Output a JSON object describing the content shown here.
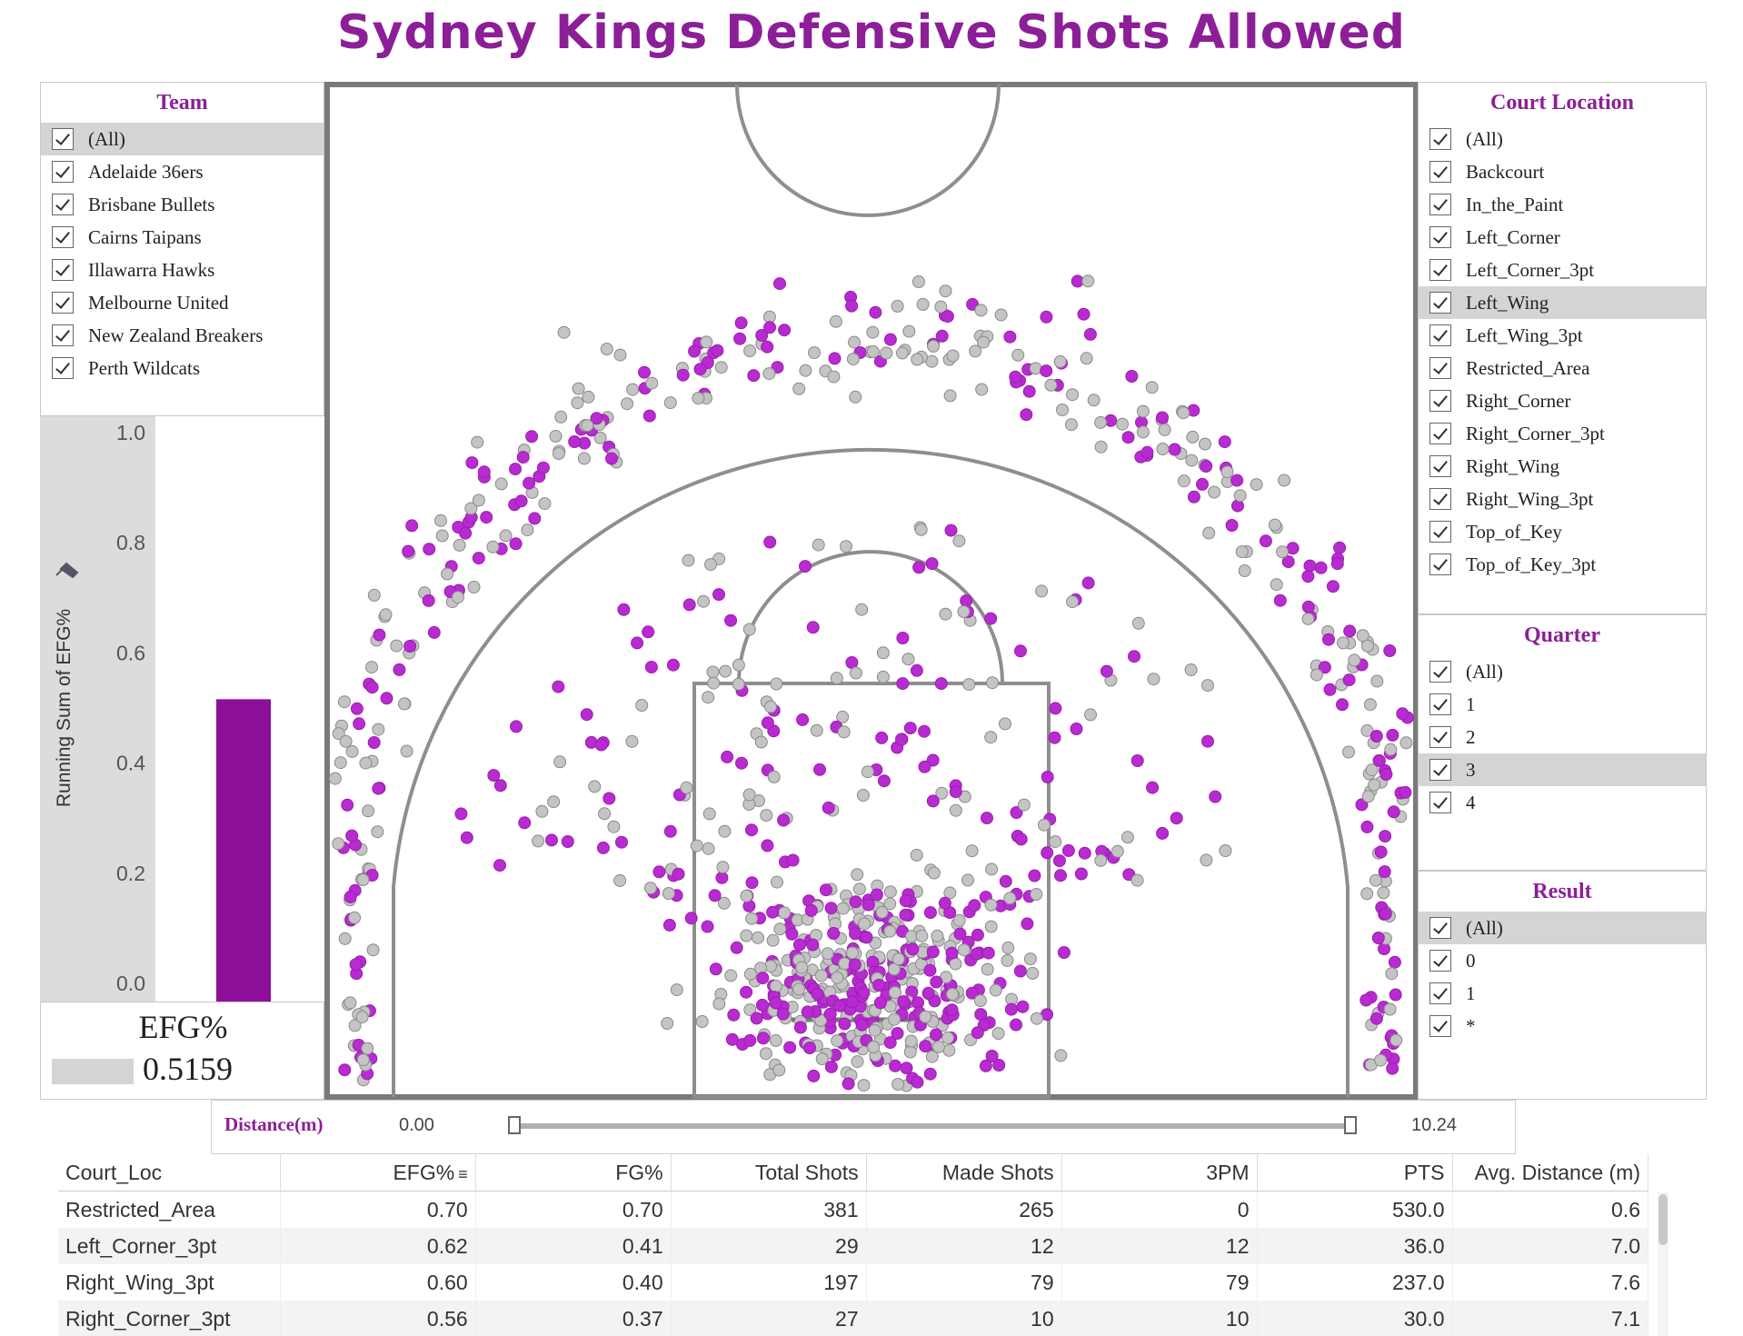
{
  "title": "Sydney Kings Defensive Shots Allowed",
  "colors": {
    "accent": "#8c1f97",
    "made": "#b82bd0",
    "missed": "#c4c4c4",
    "bar": "#8c0f9a"
  },
  "team_filter": {
    "title": "Team",
    "items": [
      {
        "label": "(All)",
        "checked": true
      },
      {
        "label": "Adelaide 36ers",
        "checked": true
      },
      {
        "label": "Brisbane Bullets",
        "checked": true
      },
      {
        "label": "Cairns Taipans",
        "checked": true
      },
      {
        "label": "Illawarra Hawks",
        "checked": true
      },
      {
        "label": "Melbourne United",
        "checked": true
      },
      {
        "label": "New Zealand Breakers",
        "checked": true
      },
      {
        "label": "Perth Wildcats",
        "checked": true
      }
    ]
  },
  "court_location_filter": {
    "title": "Court Location",
    "items": [
      {
        "label": "(All)",
        "checked": true
      },
      {
        "label": "Backcourt",
        "checked": true
      },
      {
        "label": "In_the_Paint",
        "checked": true
      },
      {
        "label": "Left_Corner",
        "checked": true
      },
      {
        "label": "Left_Corner_3pt",
        "checked": true
      },
      {
        "label": "Left_Wing",
        "checked": true
      },
      {
        "label": "Left_Wing_3pt",
        "checked": true
      },
      {
        "label": "Restricted_Area",
        "checked": true
      },
      {
        "label": "Right_Corner",
        "checked": true
      },
      {
        "label": "Right_Corner_3pt",
        "checked": true
      },
      {
        "label": "Right_Wing",
        "checked": true
      },
      {
        "label": "Right_Wing_3pt",
        "checked": true
      },
      {
        "label": "Top_of_Key",
        "checked": true
      },
      {
        "label": "Top_of_Key_3pt",
        "checked": true
      }
    ]
  },
  "quarter_filter": {
    "title": "Quarter",
    "items": [
      {
        "label": "(All)",
        "checked": true
      },
      {
        "label": "1",
        "checked": true
      },
      {
        "label": "2",
        "checked": true
      },
      {
        "label": "3",
        "checked": true
      },
      {
        "label": "4",
        "checked": true
      }
    ]
  },
  "result_filter": {
    "title": "Result",
    "items": [
      {
        "label": "(All)",
        "checked": true
      },
      {
        "label": "0",
        "checked": true
      },
      {
        "label": "1",
        "checked": true
      },
      {
        "label": "*",
        "checked": true
      }
    ]
  },
  "chart_data": {
    "type": "bar",
    "ylabel": "Running Sum of EFG%",
    "ylim": [
      0,
      1.0
    ],
    "ticks": [
      1.0,
      0.8,
      0.6,
      0.4,
      0.2,
      0.0
    ],
    "tick_labels": [
      "1.0",
      "0.8",
      "0.6",
      "0.4",
      "0.2",
      "0.0"
    ],
    "values": [
      0.5159
    ],
    "grid": false
  },
  "efg_summary": {
    "label": "EFG%",
    "value": "0.5159"
  },
  "distance_slider": {
    "label": "Distance(m)",
    "min_label": "0.00",
    "max_label": "10.24",
    "range": [
      0.0,
      10.24
    ]
  },
  "table": {
    "headers": [
      "Court_Loc",
      "EFG%",
      "FG%",
      "Total Shots",
      "Made Shots",
      "3PM",
      "PTS",
      "Avg. Distance (m)"
    ],
    "rows": [
      [
        "Restricted_Area",
        "0.70",
        "0.70",
        "381",
        "265",
        "0",
        "530.0",
        "0.6"
      ],
      [
        "Left_Corner_3pt",
        "0.62",
        "0.41",
        "29",
        "12",
        "12",
        "36.0",
        "7.0"
      ],
      [
        "Right_Wing_3pt",
        "0.60",
        "0.40",
        "197",
        "79",
        "79",
        "237.0",
        "7.6"
      ],
      [
        "Right_Corner_3pt",
        "0.56",
        "0.37",
        "27",
        "10",
        "10",
        "30.0",
        "7.1"
      ]
    ]
  }
}
